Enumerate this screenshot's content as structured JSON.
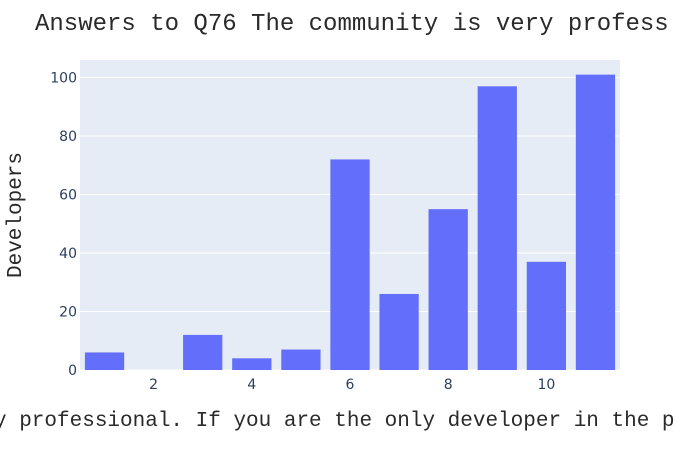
{
  "chart_data": {
    "type": "bar",
    "title": "Answers to Q76 The community is very profess",
    "xlabel": "y professional. If you are the only developer in the p",
    "ylabel": "Developers",
    "x": [
      1,
      2,
      3,
      4,
      5,
      6,
      7,
      8,
      9,
      10,
      11
    ],
    "values": [
      6,
      0,
      12,
      4,
      7,
      72,
      26,
      55,
      97,
      37,
      101
    ],
    "xlim": [
      0.5,
      11.5
    ],
    "ylim": [
      0,
      106
    ],
    "x_ticks": [
      "2",
      "4",
      "6",
      "8",
      "10"
    ],
    "x_tick_values": [
      2,
      4,
      6,
      8,
      10
    ],
    "y_ticks": [
      "0",
      "20",
      "40",
      "60",
      "80",
      "100"
    ],
    "y_tick_values": [
      0,
      20,
      40,
      60,
      80,
      100
    ],
    "grid": true,
    "bar_color": "#636efa",
    "plot_background": "#e5ecf6",
    "gridline_color": "#ffffff"
  }
}
